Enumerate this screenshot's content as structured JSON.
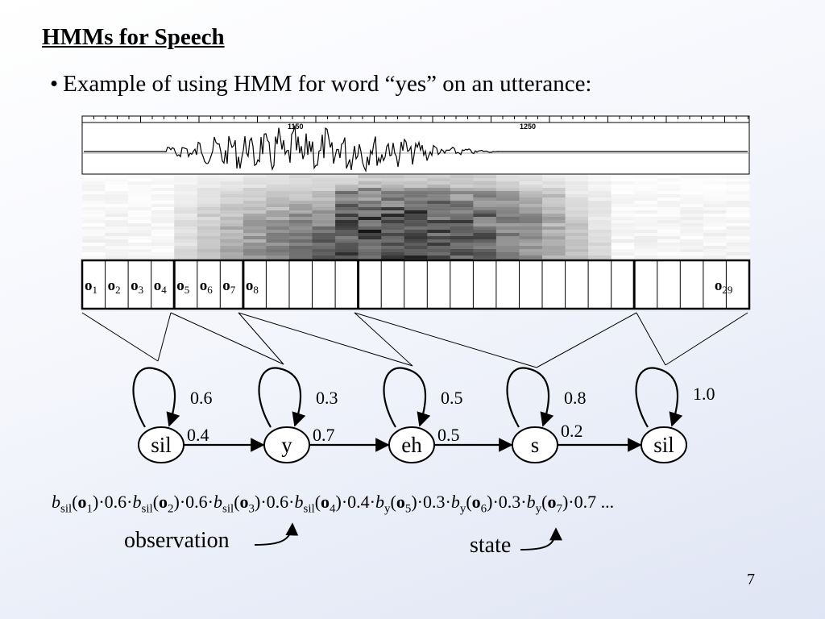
{
  "slide": {
    "title": "HMMs for Speech",
    "bullet": "Example of using HMM for word “yes” on an utterance:",
    "page_number": "7"
  },
  "waveform": {
    "tick_labels": [
      "1150",
      "1250"
    ]
  },
  "frames": {
    "labels": [
      {
        "base": "o",
        "sub": "1"
      },
      {
        "base": "o",
        "sub": "2"
      },
      {
        "base": "o",
        "sub": "3"
      },
      {
        "base": "o",
        "sub": "4"
      },
      {
        "base": "o",
        "sub": "5"
      },
      {
        "base": "o",
        "sub": "6"
      },
      {
        "base": "o",
        "sub": "7"
      },
      {
        "base": "o",
        "sub": "8"
      },
      {
        "base": "o",
        "sub": "29"
      }
    ]
  },
  "hmm": {
    "states": [
      {
        "label": "sil",
        "self_prob": "0.6",
        "next_prob": "0.4"
      },
      {
        "label": "y",
        "self_prob": "0.3",
        "next_prob": "0.7"
      },
      {
        "label": "eh",
        "self_prob": "0.5",
        "next_prob": "0.5"
      },
      {
        "label": "s",
        "self_prob": "0.8",
        "next_prob": "0.2"
      },
      {
        "label": "sil",
        "self_prob": "1.0",
        "next_prob": ""
      }
    ]
  },
  "formula": {
    "terms": [
      {
        "b": "b",
        "state": "sil",
        "obs": "o",
        "idx": "1",
        "after": ")·0.6·"
      },
      {
        "b": "b",
        "state": "sil",
        "obs": "o",
        "idx": "2",
        "after": ")·0.6·"
      },
      {
        "b": "b",
        "state": "sil",
        "obs": "o",
        "idx": "3",
        "after": ")·0.6·"
      },
      {
        "b": "b",
        "state": "sil",
        "obs": "o",
        "idx": "4",
        "after": ")·0.4·"
      },
      {
        "b": "b",
        "state": "y",
        "obs": "o",
        "idx": "5",
        "after": ")·0.3·"
      },
      {
        "b": "b",
        "state": "y",
        "obs": "o",
        "idx": "6",
        "after": ")·0.3·"
      },
      {
        "b": "b",
        "state": "y",
        "obs": "o",
        "idx": "7",
        "after": ")·0.7 ..."
      }
    ]
  },
  "annotations": {
    "observation": "observation",
    "state": "state"
  }
}
